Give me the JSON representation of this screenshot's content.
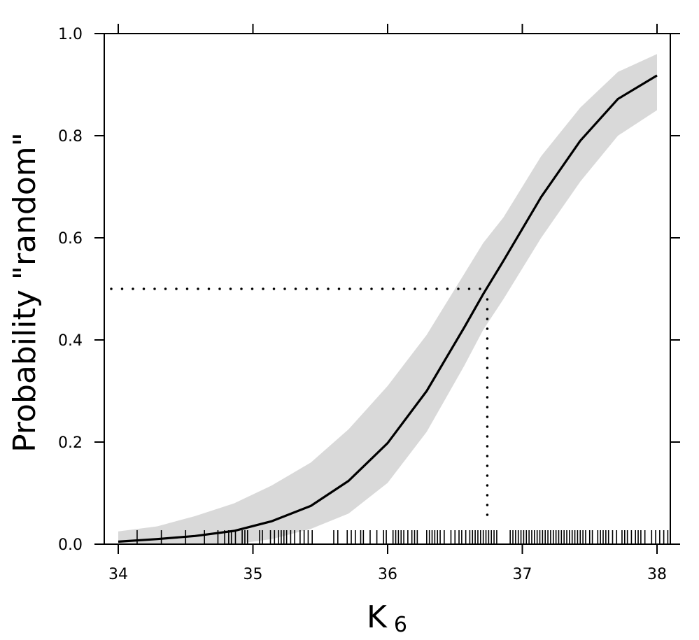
{
  "chart_data": {
    "type": "line",
    "xlabel": "K",
    "xlabel_subscript": "6",
    "ylabel": "Probability \"random\"",
    "xlim": [
      34,
      38
    ],
    "ylim": [
      0,
      1
    ],
    "xticks": [
      34,
      35,
      36,
      37,
      38
    ],
    "xtick_labels": [
      "34",
      "35",
      "36",
      "37",
      "38"
    ],
    "yticks": [
      0,
      0.2,
      0.4,
      0.6,
      0.8,
      1.0
    ],
    "ytick_labels": [
      "0.0",
      "0.2",
      "0.4",
      "0.6",
      "0.8",
      "1.0"
    ],
    "grid": false,
    "series": [
      {
        "type": "line",
        "x": [
          34.0,
          34.29,
          34.57,
          34.86,
          35.14,
          35.43,
          35.71,
          36.0,
          36.29,
          36.57,
          36.71,
          36.86,
          37.14,
          37.43,
          37.71,
          38.0
        ],
        "y": [
          0.005,
          0.01,
          0.016,
          0.026,
          0.045,
          0.075,
          0.124,
          0.198,
          0.3,
          0.425,
          0.49,
          0.555,
          0.68,
          0.79,
          0.872,
          0.918
        ]
      }
    ],
    "band": {
      "x": [
        34.0,
        34.29,
        34.57,
        34.86,
        35.14,
        35.43,
        35.71,
        36.0,
        36.29,
        36.57,
        36.71,
        36.86,
        37.14,
        37.43,
        37.71,
        38.0
      ],
      "lower": [
        0.0,
        0.0,
        0.0,
        0.0,
        0.01,
        0.03,
        0.06,
        0.12,
        0.22,
        0.35,
        0.42,
        0.48,
        0.6,
        0.71,
        0.8,
        0.85
      ],
      "upper": [
        0.025,
        0.035,
        0.055,
        0.08,
        0.115,
        0.16,
        0.225,
        0.31,
        0.41,
        0.53,
        0.59,
        0.64,
        0.76,
        0.855,
        0.925,
        0.96
      ],
      "color": "#d9d9d9"
    },
    "reference": {
      "y": 0.5,
      "x": 36.74,
      "style": "dotted"
    },
    "rug": [
      34.14,
      34.32,
      34.5,
      34.64,
      34.74,
      34.79,
      34.82,
      34.84,
      34.87,
      34.92,
      34.94,
      34.96,
      35.05,
      35.07,
      35.13,
      35.16,
      35.19,
      35.21,
      35.23,
      35.25,
      35.28,
      35.31,
      35.35,
      35.38,
      35.41,
      35.44,
      35.6,
      35.63,
      35.7,
      35.73,
      35.76,
      35.8,
      35.82,
      35.87,
      35.92,
      35.97,
      35.99,
      36.04,
      36.06,
      36.08,
      36.1,
      36.12,
      36.15,
      36.18,
      36.2,
      36.22,
      36.29,
      36.31,
      36.33,
      36.35,
      36.37,
      36.39,
      36.42,
      36.47,
      36.5,
      36.53,
      36.55,
      36.58,
      36.61,
      36.63,
      36.65,
      36.67,
      36.69,
      36.71,
      36.73,
      36.75,
      36.77,
      36.79,
      36.81,
      36.91,
      36.93,
      36.95,
      36.97,
      36.99,
      37.01,
      37.03,
      37.05,
      37.07,
      37.09,
      37.11,
      37.13,
      37.15,
      37.17,
      37.19,
      37.21,
      37.23,
      37.25,
      37.27,
      37.29,
      37.31,
      37.33,
      37.35,
      37.37,
      37.39,
      37.41,
      37.43,
      37.45,
      37.47,
      37.5,
      37.52,
      37.56,
      37.58,
      37.6,
      37.62,
      37.64,
      37.67,
      37.7,
      37.74,
      37.76,
      37.78,
      37.81,
      37.84,
      37.86,
      37.88,
      37.91,
      37.96,
      37.99,
      38.02,
      38.05,
      38.08
    ]
  }
}
